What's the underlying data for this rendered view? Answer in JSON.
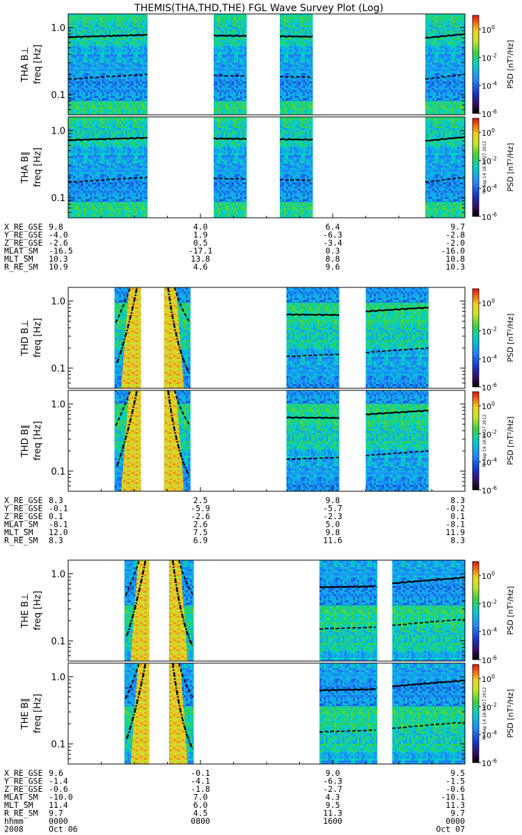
{
  "chart_data": {
    "type": "heatmap",
    "title": "THEMIS(THA,THD,THE) FGL Wave Survey Plot (Log)",
    "yscale": "log",
    "ylim": [
      0.05,
      1.6
    ],
    "yticks": [
      {
        "value": 0.1,
        "label": "0.1"
      },
      {
        "value": 1.0,
        "label": "1.0"
      }
    ],
    "colorbar": {
      "label": "PSD [nT²/Hz]",
      "scale": "log",
      "range": [
        1e-06,
        10
      ],
      "ticks": [
        {
          "exp": 0,
          "label": "0",
          "value": 1
        },
        {
          "exp": -2,
          "label": "-2",
          "value": 0.01
        },
        {
          "exp": -4,
          "label": "-4",
          "value": 0.0001
        },
        {
          "exp": -6,
          "label": "-6",
          "value": 1e-06
        }
      ]
    },
    "stamp": "Fri Sep 14 18:51:27 2012",
    "time_axis": {
      "start": "2008 Oct 06 0000",
      "end": "2008 Oct 07 0000",
      "hours": [
        0,
        8,
        16,
        24
      ]
    },
    "color_stops": [
      {
        "level": 0.0,
        "color": "#000000"
      },
      {
        "level": 0.1,
        "color": "#3a0c6a"
      },
      {
        "level": 0.2,
        "color": "#1432c8"
      },
      {
        "level": 0.35,
        "color": "#1e8cff"
      },
      {
        "level": 0.5,
        "color": "#00d2c8"
      },
      {
        "level": 0.62,
        "color": "#3cd23c"
      },
      {
        "level": 0.74,
        "color": "#c8e628"
      },
      {
        "level": 0.84,
        "color": "#f0d21e"
      },
      {
        "level": 0.93,
        "color": "#f06414"
      },
      {
        "level": 1.0,
        "color": "#dc1414"
      }
    ],
    "probes": [
      {
        "name": "THA",
        "panels": [
          {
            "label": "THA B⊥",
            "ylabel": "freq [Hz]"
          },
          {
            "label": "THA B∥",
            "ylabel": "freq [Hz]"
          }
        ],
        "segments": [
          [
            0.0,
            4.8
          ],
          [
            8.8,
            10.8
          ],
          [
            12.8,
            14.8
          ],
          [
            21.6,
            24.0
          ]
        ],
        "solid_line": [
          [
            0,
            0.72
          ],
          [
            4.8,
            0.78
          ],
          [
            21.6,
            0.7
          ],
          [
            24,
            0.8
          ]
        ],
        "dashed_line": [
          [
            0,
            0.17
          ],
          [
            4.8,
            0.2
          ],
          [
            21.6,
            0.17
          ],
          [
            24,
            0.2
          ]
        ],
        "ephemeris": {
          "labels": [
            "X_RE_GSE",
            "Y_RE_GSE",
            "Z_RE_GSE",
            "MLAT_SM",
            "MLT_SM",
            "R_RE_SM"
          ],
          "values": [
            [
              "9.8",
              "4.0",
              "6.4",
              "9.7"
            ],
            [
              "-4.0",
              "1.9",
              "-6.3",
              "-2.8"
            ],
            [
              "-2.6",
              "0.5",
              "-3.4",
              "-2.0"
            ],
            [
              "-16.5",
              "-17.1",
              "0.3",
              "-16.0"
            ],
            [
              "10.3",
              "13.8",
              "8.8",
              "10.8"
            ],
            [
              "10.9",
              "4.6",
              "9.6",
              "10.3"
            ]
          ]
        }
      },
      {
        "name": "THD",
        "panels": [
          {
            "label": "THD B⊥",
            "ylabel": "freq [Hz]"
          },
          {
            "label": "THD B∥",
            "ylabel": "freq [Hz]"
          }
        ],
        "segments": [
          [
            2.8,
            4.4
          ],
          [
            5.8,
            7.4
          ],
          [
            13.2,
            16.4
          ],
          [
            18.0,
            21.8
          ]
        ],
        "solid_line": [
          [
            13.2,
            0.63
          ],
          [
            16.4,
            0.62
          ],
          [
            18.0,
            0.7
          ],
          [
            21.8,
            0.8
          ]
        ],
        "dashed_line": [
          [
            13.2,
            0.15
          ],
          [
            16.4,
            0.16
          ],
          [
            18.0,
            0.17
          ],
          [
            21.8,
            0.2
          ]
        ],
        "ephemeris": {
          "labels": [
            "X_RE_GSE",
            "Y_RE_GSE",
            "Z_RE_GSE",
            "MLAT_SM",
            "MLT_SM",
            "R_RE_SM"
          ],
          "values": [
            [
              "8.3",
              "2.5",
              "9.8",
              "8.3"
            ],
            [
              "-0.1",
              "-5.9",
              "-5.7",
              "-0.2"
            ],
            [
              "0.1",
              "-2.6",
              "-2.3",
              "0.1"
            ],
            [
              "-8.1",
              "2.6",
              "5.0",
              "-8.1"
            ],
            [
              "12.0",
              "7.5",
              "9.8",
              "11.9"
            ],
            [
              "8.3",
              "6.9",
              "11.6",
              "8.3"
            ]
          ]
        }
      },
      {
        "name": "THE",
        "panels": [
          {
            "label": "THE B⊥",
            "ylabel": "freq [Hz]"
          },
          {
            "label": "THE B∥",
            "ylabel": "freq [Hz]"
          }
        ],
        "segments": [
          [
            3.4,
            4.9
          ],
          [
            6.1,
            7.6
          ],
          [
            15.2,
            18.7
          ],
          [
            19.6,
            24.0
          ]
        ],
        "solid_line": [
          [
            15.2,
            0.63
          ],
          [
            18.4,
            0.65
          ],
          [
            19.6,
            0.72
          ],
          [
            24,
            0.88
          ]
        ],
        "dashed_line": [
          [
            15.2,
            0.15
          ],
          [
            18.4,
            0.16
          ],
          [
            19.6,
            0.17
          ],
          [
            24,
            0.21
          ]
        ],
        "ephemeris": {
          "labels": [
            "X_RE_GSE",
            "Y_RE_GSE",
            "Z_RE_GSE",
            "MLAT_SM",
            "MLT_SM",
            "R_RE_SM"
          ],
          "values": [
            [
              "9.6",
              "-0.1",
              "9.0",
              "9.5"
            ],
            [
              "-1.4",
              "-4.1",
              "-6.3",
              "-1.5"
            ],
            [
              "-0.6",
              "-1.8",
              "-2.7",
              "-0.6"
            ],
            [
              "-10.0",
              "7.0",
              "4.3",
              "-10.1"
            ],
            [
              "11.4",
              "6.0",
              "9.5",
              "11.3"
            ],
            [
              "9.7",
              "4.5",
              "11.3",
              "9.7"
            ]
          ],
          "extra_rows": [
            {
              "label": "hhmm",
              "values": [
                "0000",
                "0800",
                "1600",
                "0000"
              ]
            },
            {
              "label": "2008",
              "values": [
                "Oct 06",
                "",
                "",
                "Oct 07"
              ]
            }
          ]
        }
      }
    ]
  }
}
